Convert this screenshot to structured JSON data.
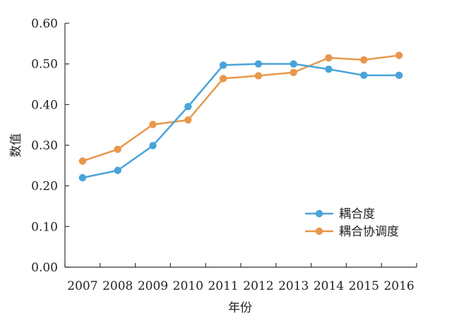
{
  "chart_data": {
    "type": "line",
    "title": "",
    "xlabel": "年份",
    "ylabel": "数值",
    "categories": [
      "2007",
      "2008",
      "2009",
      "2010",
      "2011",
      "2012",
      "2013",
      "2014",
      "2015",
      "2016"
    ],
    "ylim": [
      0,
      0.6
    ],
    "yticks": [
      "0.00",
      "0.10",
      "0.20",
      "0.30",
      "0.40",
      "0.50",
      "0.60"
    ],
    "grid": false,
    "legend_position": "bottom-right",
    "series": [
      {
        "name": "耦合度",
        "color": "#4aa3d8",
        "values": [
          0.22,
          0.238,
          0.299,
          0.395,
          0.497,
          0.5,
          0.5,
          0.487,
          0.472,
          0.472
        ]
      },
      {
        "name": "耦合协调度",
        "color": "#e8974b",
        "values": [
          0.261,
          0.29,
          0.351,
          0.362,
          0.464,
          0.471,
          0.479,
          0.515,
          0.51,
          0.521
        ]
      }
    ]
  }
}
